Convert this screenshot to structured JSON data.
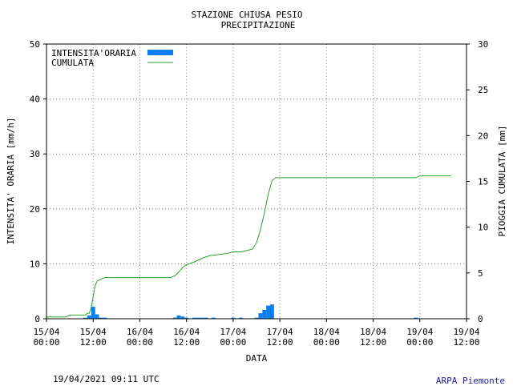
{
  "title_line1": "STAZIONE CHIUSA PESIO",
  "title_line2": "PRECIPITAZIONE",
  "footer": {
    "timestamp": "19/04/2021 09:11 UTC",
    "source": "ARPA Piemonte"
  },
  "colors": {
    "intensity": "#0a7ff2",
    "cumulative": "#2ca02c",
    "grid": "#808080"
  },
  "chart_data": {
    "type": "bar+line",
    "xlabel": "DATA",
    "ylabel_left": "INTENSITA' ORARIA [mm/h]",
    "ylabel_right": "PIOGGIA CUMULATA [mm]",
    "ylim_left": [
      0,
      50
    ],
    "ylim_right": [
      0,
      30
    ],
    "yticks_left": [
      "0",
      "10",
      "20",
      "30",
      "40",
      "50"
    ],
    "yticks_right": [
      "0",
      "5",
      "10",
      "15",
      "20",
      "25",
      "30"
    ],
    "xlim_hours": [
      0,
      108
    ],
    "xticks": [
      {
        "line1": "15/04",
        "line2": "00:00"
      },
      {
        "line1": "15/04",
        "line2": "12:00"
      },
      {
        "line1": "16/04",
        "line2": "00:00"
      },
      {
        "line1": "16/04",
        "line2": "12:00"
      },
      {
        "line1": "17/04",
        "line2": "00:00"
      },
      {
        "line1": "17/04",
        "line2": "12:00"
      },
      {
        "line1": "18/04",
        "line2": "00:00"
      },
      {
        "line1": "18/04",
        "line2": "12:00"
      },
      {
        "line1": "19/04",
        "line2": "00:00"
      },
      {
        "line1": "19/04",
        "line2": "12:00"
      }
    ],
    "grid": true,
    "legend_position": "top-left",
    "series": [
      {
        "name": "INTENSITA'ORARIA",
        "kind": "bar",
        "axis": "left",
        "points": [
          {
            "hour": 10,
            "value": 0.2
          },
          {
            "hour": 11,
            "value": 0.6
          },
          {
            "hour": 12,
            "value": 2.2
          },
          {
            "hour": 13,
            "value": 0.8
          },
          {
            "hour": 14,
            "value": 0.2
          },
          {
            "hour": 15,
            "value": 0.2
          },
          {
            "hour": 33,
            "value": 0.2
          },
          {
            "hour": 34,
            "value": 0.6
          },
          {
            "hour": 35,
            "value": 0.4
          },
          {
            "hour": 36,
            "value": 0.2
          },
          {
            "hour": 38,
            "value": 0.2
          },
          {
            "hour": 39,
            "value": 0.2
          },
          {
            "hour": 40,
            "value": 0.2
          },
          {
            "hour": 41,
            "value": 0.2
          },
          {
            "hour": 43,
            "value": 0.2
          },
          {
            "hour": 48,
            "value": 0.2
          },
          {
            "hour": 50,
            "value": 0.2
          },
          {
            "hour": 54,
            "value": 0.2
          },
          {
            "hour": 55,
            "value": 1.0
          },
          {
            "hour": 56,
            "value": 1.6
          },
          {
            "hour": 57,
            "value": 2.4
          },
          {
            "hour": 58,
            "value": 2.6
          },
          {
            "hour": 95,
            "value": 0.2
          }
        ]
      },
      {
        "name": "CUMULATA",
        "kind": "line",
        "axis": "right",
        "points": [
          [
            0,
            0.2
          ],
          [
            5,
            0.2
          ],
          [
            6,
            0.4
          ],
          [
            10,
            0.4
          ],
          [
            10.5,
            0.6
          ],
          [
            11,
            0.6
          ],
          [
            11.5,
            1.2
          ],
          [
            12,
            2.4
          ],
          [
            12.5,
            3.6
          ],
          [
            13,
            4.1
          ],
          [
            14,
            4.3
          ],
          [
            15,
            4.5
          ],
          [
            32,
            4.5
          ],
          [
            33,
            4.7
          ],
          [
            34,
            5.1
          ],
          [
            35,
            5.6
          ],
          [
            36,
            5.9
          ],
          [
            38,
            6.2
          ],
          [
            40,
            6.6
          ],
          [
            42,
            6.9
          ],
          [
            44,
            7.0
          ],
          [
            46,
            7.1
          ],
          [
            48,
            7.3
          ],
          [
            50,
            7.3
          ],
          [
            51,
            7.4
          ],
          [
            53,
            7.6
          ],
          [
            54,
            8.3
          ],
          [
            55,
            9.7
          ],
          [
            56,
            11.5
          ],
          [
            57,
            13.6
          ],
          [
            58,
            15.1
          ],
          [
            59,
            15.4
          ],
          [
            95,
            15.4
          ],
          [
            96,
            15.6
          ],
          [
            104,
            15.6
          ]
        ]
      }
    ]
  }
}
